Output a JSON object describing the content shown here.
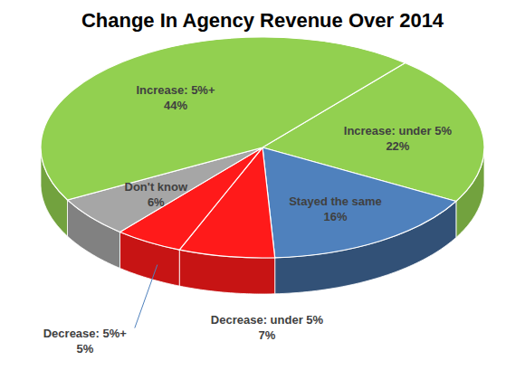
{
  "chart_data": {
    "type": "pie",
    "title": "Change In Agency Revenue Over 2014",
    "categories": [
      "Increase: under 5%",
      "Stayed the same",
      "Decrease: under 5%",
      "Decrease: 5%+",
      "Don't know",
      "Increase: 5%+"
    ],
    "values": [
      22,
      16,
      7,
      5,
      6,
      44
    ],
    "value_labels": [
      "22%",
      "16%",
      "7%",
      "5%",
      "6%",
      "44%"
    ],
    "colors": [
      "#92d050",
      "#4f81bd",
      "#ff1a1a",
      "#ff1a1a",
      "#a6a6a6",
      "#92d050"
    ],
    "data_labels": true
  }
}
